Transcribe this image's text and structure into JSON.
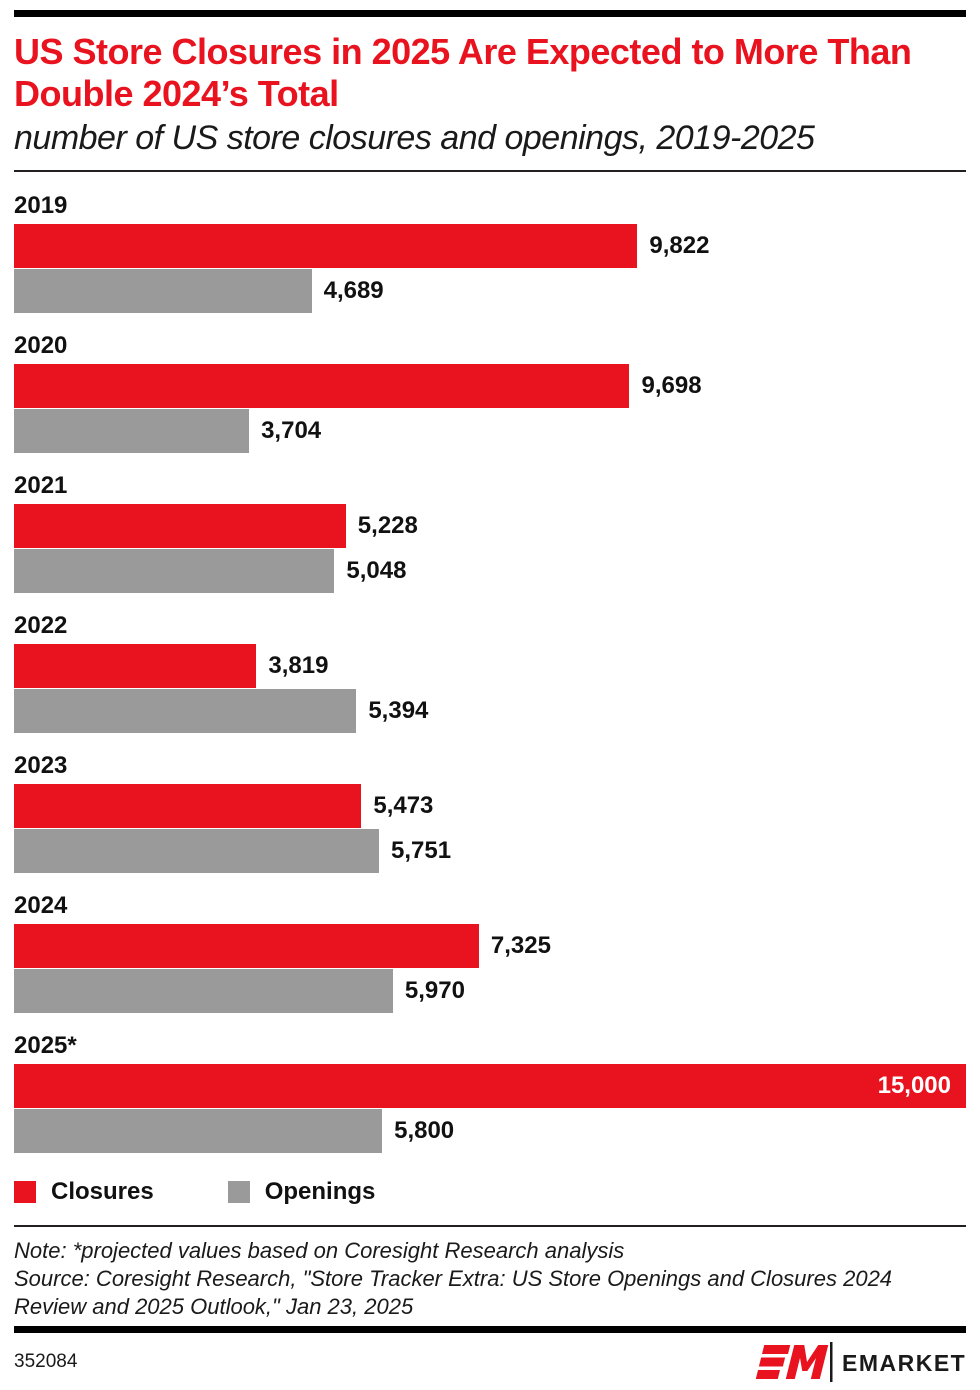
{
  "header": {
    "title": "US Store Closures in 2025 Are Expected to More Than Double 2024’s Total",
    "subtitle": "number of US store closures and openings, 2019-2025"
  },
  "chart_data": {
    "type": "bar",
    "orientation": "horizontal",
    "title": "US Store Closures in 2025 Are Expected to More Than Double 2024’s Total",
    "subtitle": "number of US store closures and openings, 2019-2025",
    "categories": [
      "2019",
      "2020",
      "2021",
      "2022",
      "2023",
      "2024",
      "2025*"
    ],
    "series": [
      {
        "name": "Closures",
        "color": "#e8131f",
        "values": [
          9822,
          9698,
          5228,
          3819,
          5473,
          7325,
          15000
        ],
        "value_labels": [
          "9,822",
          "9,698",
          "5,228",
          "3,819",
          "5,473",
          "7,325",
          "15,000"
        ]
      },
      {
        "name": "Openings",
        "color": "#9a9a9a",
        "values": [
          4689,
          3704,
          5048,
          5394,
          5751,
          5970,
          5800
        ],
        "value_labels": [
          "4,689",
          "3,704",
          "5,048",
          "5,394",
          "5,751",
          "5,970",
          "5,800"
        ]
      }
    ],
    "xlim": [
      0,
      15000
    ],
    "grid": false,
    "legend_position": "bottom",
    "value_labels_shown": true
  },
  "legend": {
    "closures_label": "Closures",
    "openings_label": "Openings"
  },
  "footnotes": {
    "note": "Note: *projected values based on Coresight Research analysis",
    "source": "Source: Coresight Research, \"Store Tracker Extra: US Store Openings and Closures 2024 Review and 2025 Outlook,\" Jan 23, 2025"
  },
  "footer": {
    "chart_id": "352084",
    "brand_name": "EMARKETER"
  },
  "colors": {
    "accent_red": "#e8131f",
    "neutral_gray": "#9a9a9a",
    "rule_black": "#000000"
  }
}
